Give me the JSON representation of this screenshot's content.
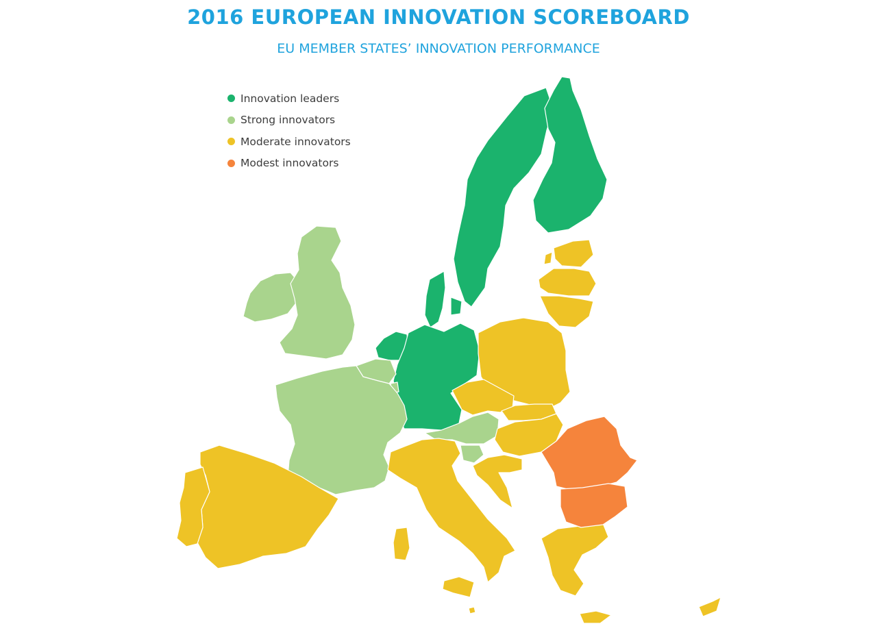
{
  "header": {
    "title": "2016 EUROPEAN INNOVATION SCOREBOARD",
    "subtitle": "EU MEMBER STATES’ INNOVATION PERFORMANCE"
  },
  "legend": [
    {
      "label": "Innovation leaders",
      "color": "#1bb36d"
    },
    {
      "label": "Strong innovators",
      "color": "#a9d48d"
    },
    {
      "label": "Moderate innovators",
      "color": "#eec326"
    },
    {
      "label": "Modest innovators",
      "color": "#f5843c"
    }
  ],
  "countries": [
    {
      "name": "sweden",
      "group": 0
    },
    {
      "name": "finland",
      "group": 0
    },
    {
      "name": "denmark",
      "group": 0
    },
    {
      "name": "netherlands",
      "group": 0
    },
    {
      "name": "germany",
      "group": 0
    },
    {
      "name": "ireland",
      "group": 1
    },
    {
      "name": "united-kingdom",
      "group": 1
    },
    {
      "name": "belgium",
      "group": 1
    },
    {
      "name": "luxembourg",
      "group": 1
    },
    {
      "name": "france",
      "group": 1
    },
    {
      "name": "austria",
      "group": 1
    },
    {
      "name": "slovenia",
      "group": 1
    },
    {
      "name": "estonia",
      "group": 2
    },
    {
      "name": "latvia",
      "group": 2
    },
    {
      "name": "lithuania",
      "group": 2
    },
    {
      "name": "poland",
      "group": 2
    },
    {
      "name": "czech-republic",
      "group": 2
    },
    {
      "name": "slovakia",
      "group": 2
    },
    {
      "name": "hungary",
      "group": 2
    },
    {
      "name": "croatia",
      "group": 2
    },
    {
      "name": "italy",
      "group": 2
    },
    {
      "name": "spain",
      "group": 2
    },
    {
      "name": "portugal",
      "group": 2
    },
    {
      "name": "greece",
      "group": 2
    },
    {
      "name": "cyprus",
      "group": 2
    },
    {
      "name": "malta",
      "group": 2
    },
    {
      "name": "romania",
      "group": 3
    },
    {
      "name": "bulgaria",
      "group": 3
    }
  ]
}
